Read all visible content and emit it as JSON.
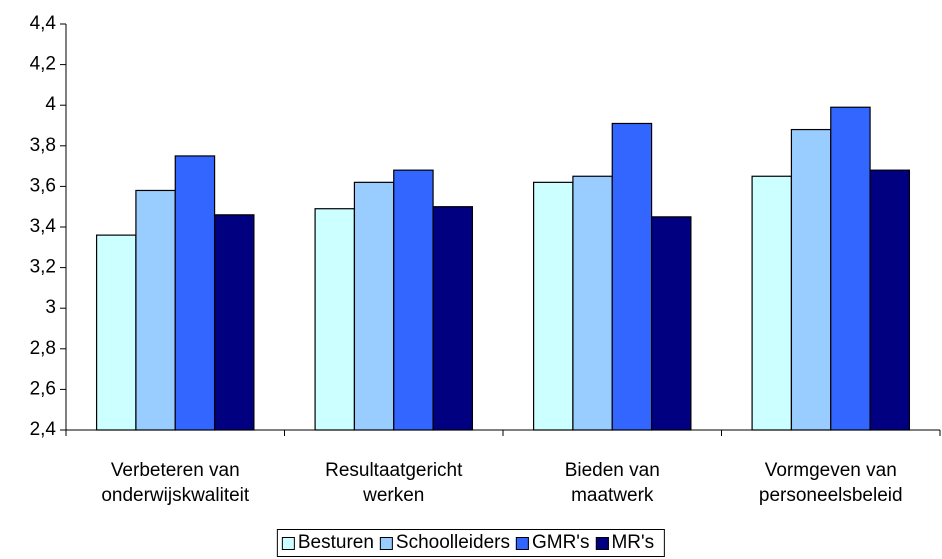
{
  "chart_data": {
    "type": "bar",
    "categories": [
      "Verbeteren van onderwijskwaliteit",
      "Resultaatgericht werken",
      "Bieden van maatwerk",
      "Vormgeven van personeelsbeleid"
    ],
    "series": [
      {
        "name": "Besturen",
        "color": "#ccffff",
        "values": [
          3.36,
          3.49,
          3.62,
          3.65
        ]
      },
      {
        "name": "Schoolleiders",
        "color": "#99ccff",
        "values": [
          3.58,
          3.62,
          3.65,
          3.88
        ]
      },
      {
        "name": "GMR's",
        "color": "#3366ff",
        "values": [
          3.75,
          3.68,
          3.91,
          3.99
        ]
      },
      {
        "name": "MR's",
        "color": "#000080",
        "values": [
          3.46,
          3.5,
          3.45,
          3.68
        ]
      }
    ],
    "ylim": [
      2.4,
      4.4
    ],
    "yticks": [
      {
        "value": 2.4,
        "label": "2,4"
      },
      {
        "value": 2.6,
        "label": "2,6"
      },
      {
        "value": 2.8,
        "label": "2,8"
      },
      3,
      {
        "value": 3.2,
        "label": "3,2"
      },
      {
        "value": 3.4,
        "label": "3,4"
      },
      {
        "value": 3.6,
        "label": "3,6"
      },
      {
        "value": 3.8,
        "label": "3,8"
      },
      4,
      {
        "value": 4.2,
        "label": "4,2"
      },
      {
        "value": 4.4,
        "label": "4,4"
      }
    ],
    "grid": false,
    "legend": "bottom"
  }
}
